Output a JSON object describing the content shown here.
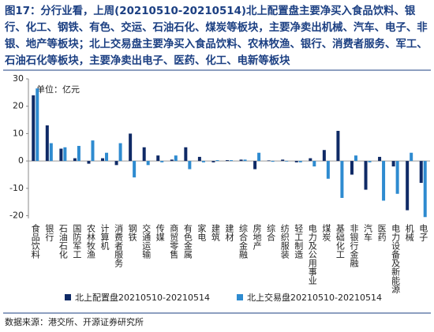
{
  "chart_data": {
    "type": "bar",
    "title": "图17：分行业看，上周(20210510-20210514)北上配置盘主要净买入食品饮料、银行、化工、钢铁、有色、交运、石油石化、煤炭等板块，主要净卖出机械、汽车、电子、非银、地产等板块；北上交易盘主要净买入食品饮料、农林牧渔、银行、消费者服务、军工、石油石化等板块，主要净卖出电子、医药、化工、电新等板块",
    "unit_label": "单位：亿元",
    "source": "数据来源：港交所、开源证券研究所",
    "categories": [
      "食品饮料",
      "银行",
      "石油石化",
      "国防军工",
      "农林牧渔",
      "计算机",
      "消费者服务",
      "钢铁",
      "交通运输",
      "传媒",
      "商贸零售",
      "有色金属",
      "家电",
      "建筑",
      "建材",
      "综合金融",
      "房地产",
      "综合",
      "纺织服装",
      "轻工制造",
      "电力及公用事业",
      "煤炭",
      "基础化工",
      "非银行金融",
      "汽车",
      "医药",
      "电力设备及新能源",
      "机械",
      "电子"
    ],
    "series": [
      {
        "name": "北上配置盘20210510-20210514",
        "color": "#0f2a66",
        "values": [
          24,
          13,
          4.5,
          1,
          -1,
          1,
          -1.5,
          10,
          5,
          2,
          0.5,
          5,
          1.5,
          -0.5,
          0.3,
          0.5,
          -3,
          0.2,
          0.5,
          -0.5,
          1,
          4,
          11,
          -5,
          -10.5,
          1.5,
          -2,
          -18,
          -8
        ]
      },
      {
        "name": "北上交易盘20210510-20210514",
        "color": "#2e8bd0",
        "values": [
          26.5,
          6.5,
          5,
          5.5,
          7.5,
          3,
          6.5,
          -6,
          -1.5,
          -0.5,
          2,
          -3,
          -0.5,
          0.3,
          0.3,
          0.5,
          3,
          -0.3,
          -0.2,
          -0.5,
          -2,
          -6.5,
          -13.5,
          2,
          -0.5,
          -14.5,
          -12,
          3,
          -20.5
        ]
      }
    ],
    "ylim": [
      -21,
      30
    ],
    "yticks": [
      -20,
      -10,
      0,
      10,
      20,
      30
    ],
    "grid": false
  }
}
